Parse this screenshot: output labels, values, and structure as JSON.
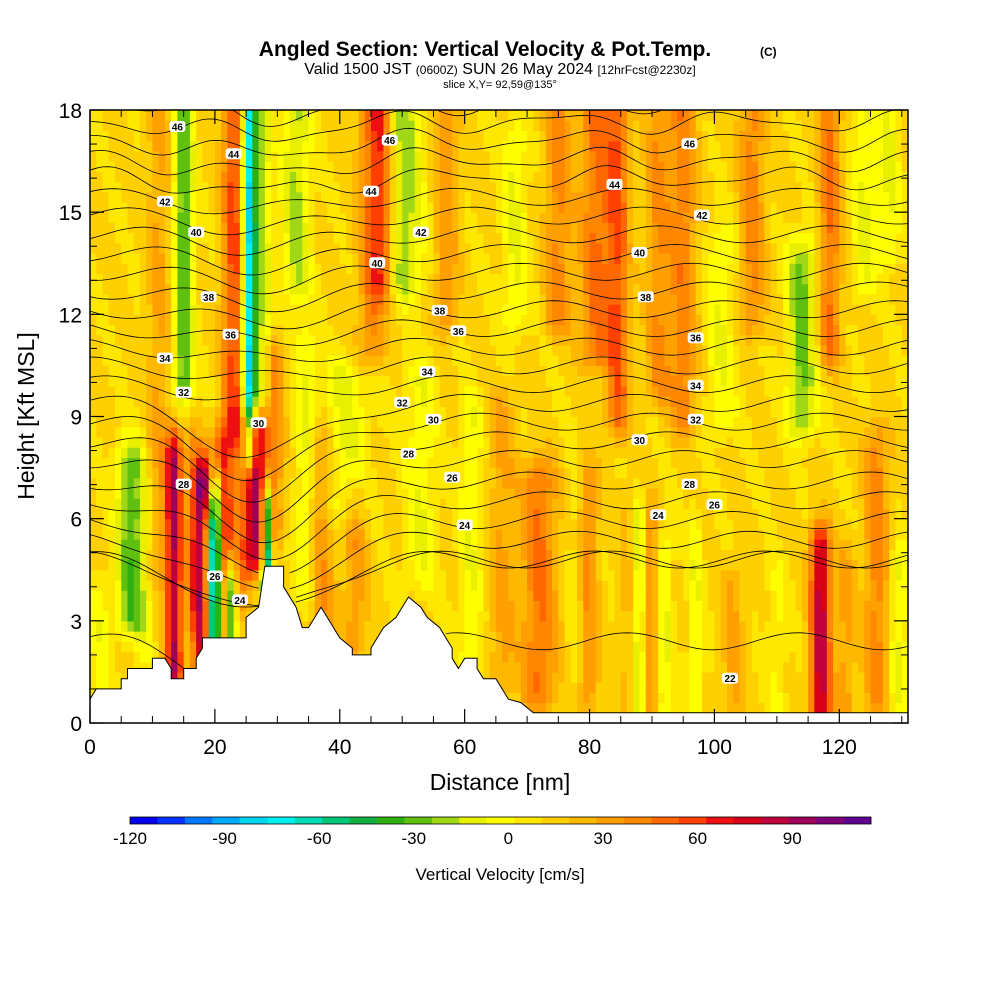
{
  "header": {
    "title": "Angled Section: Vertical Velocity & Pot.Temp.",
    "copyright": "(C)",
    "valid_prefix": "Valid 1500 JST",
    "valid_utc": "(0600Z)",
    "valid_date": "SUN 26 May 2024",
    "forecast": "[12hrFcst@2230z]",
    "slice": "slice X,Y= 92,59@135°"
  },
  "chart_data": {
    "type": "heatmap",
    "xlabel": "Distance [nm]",
    "ylabel": "Height [Kft MSL]",
    "xlim": [
      0,
      131
    ],
    "ylim": [
      0,
      18
    ],
    "x_ticks": [
      "0",
      "20",
      "40",
      "60",
      "80",
      "100",
      "120"
    ],
    "y_ticks": [
      "0",
      "3",
      "6",
      "9",
      "12",
      "15",
      "18"
    ],
    "x_tick_values": [
      0,
      20,
      40,
      60,
      80,
      100,
      120
    ],
    "y_tick_values": [
      0,
      3,
      6,
      9,
      12,
      15,
      18
    ],
    "colorbar": {
      "label": "Vertical Velocity [cm/s]",
      "min": -120,
      "max": 115,
      "tick_labels": [
        "-120",
        "-90",
        "-60",
        "-30",
        "0",
        "30",
        "60",
        "90"
      ],
      "tick_values": [
        -120,
        -90,
        -60,
        -30,
        0,
        30,
        60,
        90
      ],
      "colors": [
        "#0000ee",
        "#0033ff",
        "#0077ff",
        "#00aaff",
        "#00d6f0",
        "#00f0f0",
        "#00dcb4",
        "#00c878",
        "#10b040",
        "#30b010",
        "#60c010",
        "#a0d818",
        "#e8f000",
        "#ffff00",
        "#ffe800",
        "#ffd000",
        "#ffb800",
        "#ffa000",
        "#ff8800",
        "#ff6800",
        "#ff4000",
        "#ee1010",
        "#d80018",
        "#c0003c",
        "#a00058",
        "#800078",
        "#600090"
      ]
    },
    "terrain_kft": [
      [
        0,
        0.7
      ],
      [
        1,
        1.0
      ],
      [
        5,
        1.0
      ],
      [
        5,
        1.3
      ],
      [
        6,
        1.3
      ],
      [
        6,
        1.6
      ],
      [
        10,
        1.6
      ],
      [
        10,
        1.9
      ],
      [
        12,
        1.9
      ],
      [
        13,
        1.6
      ],
      [
        13,
        1.3
      ],
      [
        15,
        1.3
      ],
      [
        15,
        1.6
      ],
      [
        17,
        1.6
      ],
      [
        17,
        1.9
      ],
      [
        18,
        2.2
      ],
      [
        18,
        2.5
      ],
      [
        25,
        2.5
      ],
      [
        25,
        3.1
      ],
      [
        27,
        3.4
      ],
      [
        28,
        4.6
      ],
      [
        31,
        4.6
      ],
      [
        31,
        4.0
      ],
      [
        33,
        3.4
      ],
      [
        34,
        2.8
      ],
      [
        35,
        2.8
      ],
      [
        36,
        3.1
      ],
      [
        37,
        3.4
      ],
      [
        38,
        3.1
      ],
      [
        39,
        2.8
      ],
      [
        40,
        2.5
      ],
      [
        42,
        2.2
      ],
      [
        42,
        2.0
      ],
      [
        45,
        2.0
      ],
      [
        45,
        2.2
      ],
      [
        46,
        2.5
      ],
      [
        47,
        2.8
      ],
      [
        49,
        3.1
      ],
      [
        50,
        3.4
      ],
      [
        51,
        3.7
      ],
      [
        53,
        3.4
      ],
      [
        54,
        3.1
      ],
      [
        56,
        2.8
      ],
      [
        57,
        2.5
      ],
      [
        58,
        2.2
      ],
      [
        58,
        1.9
      ],
      [
        59,
        1.6
      ],
      [
        60,
        1.9
      ],
      [
        62,
        1.9
      ],
      [
        62,
        1.6
      ],
      [
        63,
        1.3
      ],
      [
        65,
        1.3
      ],
      [
        66,
        1.0
      ],
      [
        67,
        0.7
      ],
      [
        69,
        0.6
      ],
      [
        71,
        0.3
      ],
      [
        131,
        0.3
      ]
    ],
    "theta_contours": [
      {
        "label": "22",
        "label_at": [
          102.5,
          1.3
        ]
      },
      {
        "label": "24",
        "label_at": [
          24,
          3.6
        ]
      },
      {
        "label": "24",
        "label_at": [
          60,
          5.8
        ]
      },
      {
        "label": "24",
        "label_at": [
          91,
          6.1
        ]
      },
      {
        "label": "26",
        "label_at": [
          20,
          4.3
        ]
      },
      {
        "label": "26",
        "label_at": [
          58,
          7.2
        ]
      },
      {
        "label": "26",
        "label_at": [
          100,
          6.4
        ]
      },
      {
        "label": "28",
        "label_at": [
          15,
          7.0
        ]
      },
      {
        "label": "28",
        "label_at": [
          51,
          7.9
        ]
      },
      {
        "label": "28",
        "label_at": [
          96,
          7.0
        ]
      },
      {
        "label": "30",
        "label_at": [
          27,
          8.8
        ]
      },
      {
        "label": "30",
        "label_at": [
          55,
          8.9
        ]
      },
      {
        "label": "30",
        "label_at": [
          88,
          8.3
        ]
      },
      {
        "label": "32",
        "label_at": [
          15,
          9.7
        ]
      },
      {
        "label": "32",
        "label_at": [
          50,
          9.4
        ]
      },
      {
        "label": "32",
        "label_at": [
          97,
          8.9
        ]
      },
      {
        "label": "34",
        "label_at": [
          12,
          10.7
        ]
      },
      {
        "label": "34",
        "label_at": [
          54,
          10.3
        ]
      },
      {
        "label": "34",
        "label_at": [
          97,
          9.9
        ]
      },
      {
        "label": "36",
        "label_at": [
          22.5,
          11.4
        ]
      },
      {
        "label": "36",
        "label_at": [
          59,
          11.5
        ]
      },
      {
        "label": "36",
        "label_at": [
          97,
          11.3
        ]
      },
      {
        "label": "38",
        "label_at": [
          19,
          12.5
        ]
      },
      {
        "label": "38",
        "label_at": [
          56,
          12.1
        ]
      },
      {
        "label": "38",
        "label_at": [
          89,
          12.5
        ]
      },
      {
        "label": "40",
        "label_at": [
          17,
          14.4
        ]
      },
      {
        "label": "40",
        "label_at": [
          46,
          13.5
        ]
      },
      {
        "label": "40",
        "label_at": [
          88,
          13.8
        ]
      },
      {
        "label": "42",
        "label_at": [
          12,
          15.3
        ]
      },
      {
        "label": "42",
        "label_at": [
          53,
          14.4
        ]
      },
      {
        "label": "42",
        "label_at": [
          98,
          14.9
        ]
      },
      {
        "label": "44",
        "label_at": [
          23,
          16.7
        ]
      },
      {
        "label": "44",
        "label_at": [
          45,
          15.6
        ]
      },
      {
        "label": "44",
        "label_at": [
          84,
          15.8
        ]
      },
      {
        "label": "46",
        "label_at": [
          14,
          17.5
        ]
      },
      {
        "label": "46",
        "label_at": [
          48,
          17.1
        ]
      },
      {
        "label": "46",
        "label_at": [
          96,
          17.0
        ]
      }
    ]
  }
}
